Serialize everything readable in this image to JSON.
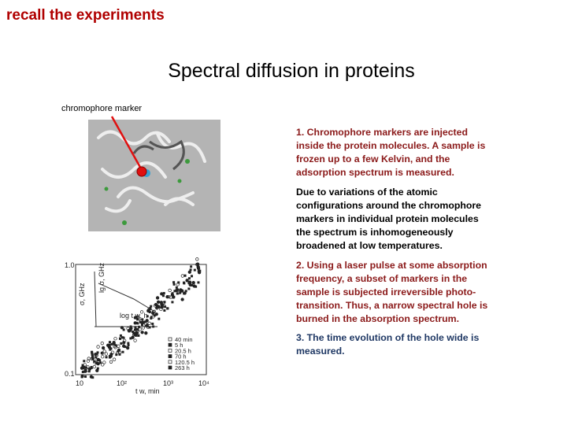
{
  "header": {
    "label": "recall the experiments"
  },
  "title": "Spectral diffusion in proteins",
  "protein_figure": {
    "label": "chromophore marker"
  },
  "paragraphs": [
    "1. Chromophore markers are injected inside the protein molecules. A sample is frozen up to a few Kelvin, and the adsorption spectrum is measured.",
    "Due to variations of the atomic configurations around the chromophore markers in individual protein molecules the spectrum is inhomogeneously broadened at low temperatures.",
    "2.  Using a laser pulse at some absorption frequency, a subset of markers in the sample is subjected irreversible photo-transition. Thus, a narrow spectral hole is burned in the absorption spectrum.",
    "3. The time evolution of the hole wide is measured."
  ],
  "plot_figure": {
    "y_labels": [
      "1.0",
      "0.1"
    ],
    "x_labels": [
      "10",
      "10²",
      "10³",
      "10⁴"
    ],
    "x_title": "t w, min",
    "y_title": "σ, GHz",
    "inset_y_title": "lg σ, GHz",
    "inset_x_title": "log t w, h",
    "legend": [
      "40 min",
      "5 h",
      "20.5 h",
      "70 h",
      "120.5 h",
      "263 h"
    ]
  }
}
